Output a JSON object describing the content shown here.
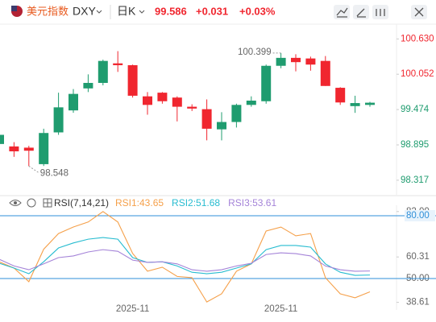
{
  "toolbar": {
    "name": "美元指数",
    "symbol": "DXY",
    "period": "日K",
    "price": "99.586",
    "change": "+0.031",
    "change_pct": "+0.03%"
  },
  "chart_data": [
    {
      "type": "candlestick",
      "categories": [
        null,
        null,
        null,
        null,
        null,
        null,
        null,
        null,
        null,
        "2025-11",
        null,
        null,
        null,
        null,
        null,
        null,
        null,
        null,
        null,
        "2025-11",
        null,
        null,
        null,
        null,
        null,
        null
      ],
      "open": [
        98.91,
        98.87,
        98.85,
        98.58,
        99.1,
        99.46,
        99.82,
        99.91,
        100.23,
        100.2,
        99.69,
        99.75,
        99.67,
        99.52,
        99.48,
        99.15,
        99.27,
        99.55,
        99.61,
        100.19,
        100.32,
        100.31,
        100.27,
        99.83,
        99.53,
        99.55
      ],
      "high": [
        99.1,
        98.94,
        98.88,
        99.16,
        99.75,
        99.81,
        100.05,
        100.29,
        100.43,
        100.21,
        99.76,
        99.76,
        99.69,
        99.56,
        99.64,
        99.43,
        99.57,
        99.69,
        100.21,
        100.399,
        100.38,
        100.34,
        100.35,
        99.84,
        99.7,
        99.6
      ],
      "low": [
        98.85,
        98.7,
        98.548,
        98.55,
        99.06,
        99.42,
        99.76,
        99.87,
        100.09,
        99.67,
        99.39,
        99.57,
        99.28,
        99.45,
        98.97,
        98.97,
        99.18,
        99.52,
        99.57,
        100.15,
        100.1,
        100.11,
        99.86,
        99.55,
        99.42,
        99.52
      ],
      "close": [
        99.06,
        98.79,
        98.8,
        99.09,
        99.51,
        99.73,
        99.91,
        100.27,
        100.2,
        99.7,
        99.55,
        99.61,
        99.52,
        99.49,
        99.16,
        99.27,
        99.55,
        99.62,
        100.19,
        100.32,
        100.25,
        100.21,
        99.86,
        99.59,
        99.58,
        99.586
      ],
      "up_color": "#1f9c6f",
      "down_color": "#f0262f",
      "low_label": 98.548,
      "high_label": 100.399,
      "ylim": [
        98.21,
        100.74
      ],
      "yticks": [
        {
          "value": 100.63,
          "label": "100.630"
        },
        100.052,
        99.474,
        98.895,
        98.317
      ],
      "ytick_colors": [
        "#f0262f",
        "#f0262f",
        "#1f9c6f",
        "#1f9c6f",
        "#1f9c6f"
      ]
    },
    {
      "type": "line",
      "title": "RSI(7,14,21)",
      "ylim": [
        35,
        85
      ],
      "yticks": [
        {
          "value": 82,
          "label": "82.00"
        },
        60.31,
        {
          "value": 50,
          "label": "50.00"
        },
        38.61
      ],
      "reference_lines": [
        {
          "value": 80,
          "label": "80.00"
        },
        50
      ],
      "reference_color": "#2f8fd8",
      "series": [
        {
          "name": "RSI1:43.65",
          "color": "#f5a04a",
          "values": [
            58,
            55,
            48.5,
            64,
            71.5,
            74.6,
            77,
            82,
            77,
            62,
            53.5,
            55.4,
            51,
            50.4,
            38.8,
            42.7,
            53.5,
            57,
            72.7,
            74.6,
            70.4,
            71.5,
            50.4,
            42.7,
            40.8,
            43.65
          ]
        },
        {
          "name": "RSI2:51.68",
          "color": "#27bcd0",
          "values": [
            57.3,
            55,
            52.3,
            58,
            64.6,
            67,
            68.8,
            69.6,
            68.8,
            60,
            57.7,
            58,
            56,
            53,
            52.3,
            53,
            55,
            57,
            63.8,
            65.8,
            65.8,
            65,
            57,
            53,
            51.5,
            51.68
          ]
        },
        {
          "name": "RSI3:53.61",
          "color": "#a483d8",
          "values": [
            59.2,
            56,
            54.2,
            57,
            60,
            60.8,
            62.7,
            63.8,
            63,
            58.8,
            57.7,
            58,
            57,
            54.2,
            53.5,
            54.2,
            56,
            57.3,
            61.5,
            62.3,
            61.9,
            60.8,
            56,
            54.2,
            53.5,
            53.61
          ]
        }
      ]
    }
  ]
}
